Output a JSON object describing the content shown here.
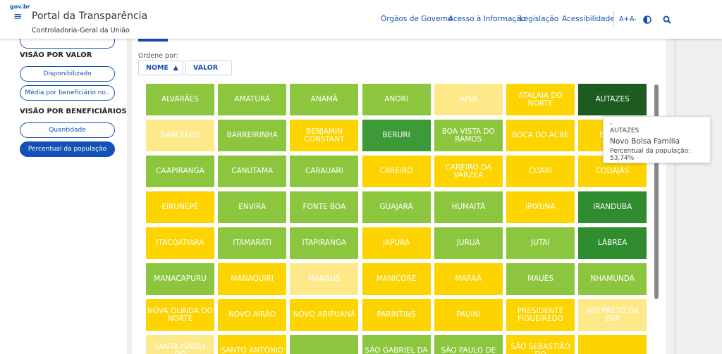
{
  "header": {
    "logo": "gov.br",
    "title": "Portal da Transparência",
    "subtitle": "Controladoria-Geral da União",
    "nav": [
      "Órgãos de Governo",
      "Acesso à Informação",
      "Legislação",
      "Acessibilidade"
    ],
    "font_up": "A+",
    "font_down": "A-"
  },
  "sidebar": {
    "section1": "VISÃO POR VALOR",
    "buttons1": [
      "Disponibilizado",
      "Média por beneficiário no.."
    ],
    "section2": "VISÃO POR BENEFICIÁRIOS",
    "buttons2": [
      "Quantidade",
      "Percentual da população"
    ],
    "active": "Percentual da população"
  },
  "sort": {
    "label": "Ordene por:",
    "options": [
      "NOME",
      "VALOR"
    ]
  },
  "tiles": [
    {
      "name": "ALVARÃES",
      "color": "#8cc63e"
    },
    {
      "name": "AMATURÁ",
      "color": "#8cc63e"
    },
    {
      "name": "ANAMÃ",
      "color": "#8cc63e"
    },
    {
      "name": "ANORI",
      "color": "#8cc63e"
    },
    {
      "name": "APUÍ",
      "color": "#fde98a"
    },
    {
      "name": "ATALAIA DO NORTE",
      "color": "#fdd300"
    },
    {
      "name": "AUTAZES",
      "color": "#1d5c1f"
    },
    {
      "name": "BARCELOS",
      "color": "#fde98a"
    },
    {
      "name": "BARREIRINHA",
      "color": "#8cc63e"
    },
    {
      "name": "BENJAMIN CONSTANT",
      "color": "#fdd300"
    },
    {
      "name": "BERURI",
      "color": "#3d9a38"
    },
    {
      "name": "BOA VISTA DO RAMOS",
      "color": "#8cc63e"
    },
    {
      "name": "BOCA DO ACRE",
      "color": "#fdd300"
    },
    {
      "name": "BORBA",
      "color": "#fdd300"
    },
    {
      "name": "CAAPIRANGA",
      "color": "#8cc63e"
    },
    {
      "name": "CANUTAMA",
      "color": "#8cc63e"
    },
    {
      "name": "CARAUARI",
      "color": "#8cc63e"
    },
    {
      "name": "CAREIRO",
      "color": "#fdd300"
    },
    {
      "name": "CAREIRO DA VÁRZEA",
      "color": "#fdd300"
    },
    {
      "name": "COARI",
      "color": "#fdd300"
    },
    {
      "name": "CODAJÁS",
      "color": "#fdd300"
    },
    {
      "name": "EIRUNEPÉ",
      "color": "#fdd300"
    },
    {
      "name": "ENVIRA",
      "color": "#8cc63e"
    },
    {
      "name": "FONTE BOA",
      "color": "#8cc63e"
    },
    {
      "name": "GUAJARÁ",
      "color": "#8cc63e"
    },
    {
      "name": "HUMAITÁ",
      "color": "#8cc63e"
    },
    {
      "name": "IPIXUNA",
      "color": "#fdd300"
    },
    {
      "name": "IRANDUBA",
      "color": "#2f8c2f"
    },
    {
      "name": "ITACOATIARA",
      "color": "#fdd300"
    },
    {
      "name": "ITAMARATI",
      "color": "#8cc63e"
    },
    {
      "name": "ITAPIRANGA",
      "color": "#8cc63e"
    },
    {
      "name": "JAPURÁ",
      "color": "#fdd300"
    },
    {
      "name": "JURUÁ",
      "color": "#8cc63e"
    },
    {
      "name": "JUTAÍ",
      "color": "#8cc63e"
    },
    {
      "name": "LÁBREA",
      "color": "#2f8c2f"
    },
    {
      "name": "MANACAPURU",
      "color": "#8cc63e"
    },
    {
      "name": "MANAQUIRI",
      "color": "#fdd300"
    },
    {
      "name": "MANAUS",
      "color": "#fde98a"
    },
    {
      "name": "MANICORÉ",
      "color": "#fdd300"
    },
    {
      "name": "MARAÃ",
      "color": "#fdd300"
    },
    {
      "name": "MAUÉS",
      "color": "#8cc63e"
    },
    {
      "name": "NHAMUNDÁ",
      "color": "#8cc63e"
    },
    {
      "name": "NOVA OLINDA DO NORTE",
      "color": "#fdd300"
    },
    {
      "name": "NOVO AIRÃO",
      "color": "#fdd300"
    },
    {
      "name": "NOVO ARIPUANÃ",
      "color": "#fdd300"
    },
    {
      "name": "PARINTINS",
      "color": "#fdd300"
    },
    {
      "name": "PAUINI",
      "color": "#fdd300"
    },
    {
      "name": "PRESIDENTE FIGUEIREDO",
      "color": "#fdd300"
    },
    {
      "name": "RIO PRETO DA EVA",
      "color": "#fde98a"
    },
    {
      "name": "SANTA ISABEL DO",
      "color": "#fde98a"
    },
    {
      "name": "SANTO ANTÔNIO",
      "color": "#fdd300"
    },
    {
      "color": "#8cc63e"
    },
    {
      "name": "SÃO GABRIEL DA",
      "color": "#8cc63e"
    },
    {
      "name": "SÃO PAULO DE",
      "color": "#8cc63e"
    },
    {
      "name": "SÃO SEBASTIÃO DO",
      "color": "#fdd300"
    },
    {
      "color": "#fdd300"
    }
  ],
  "tooltip": {
    "dash": "-",
    "name": "AUTAZES",
    "program": "Novo Bolsa Família",
    "metric": "Percentual da população: 53,74%"
  }
}
